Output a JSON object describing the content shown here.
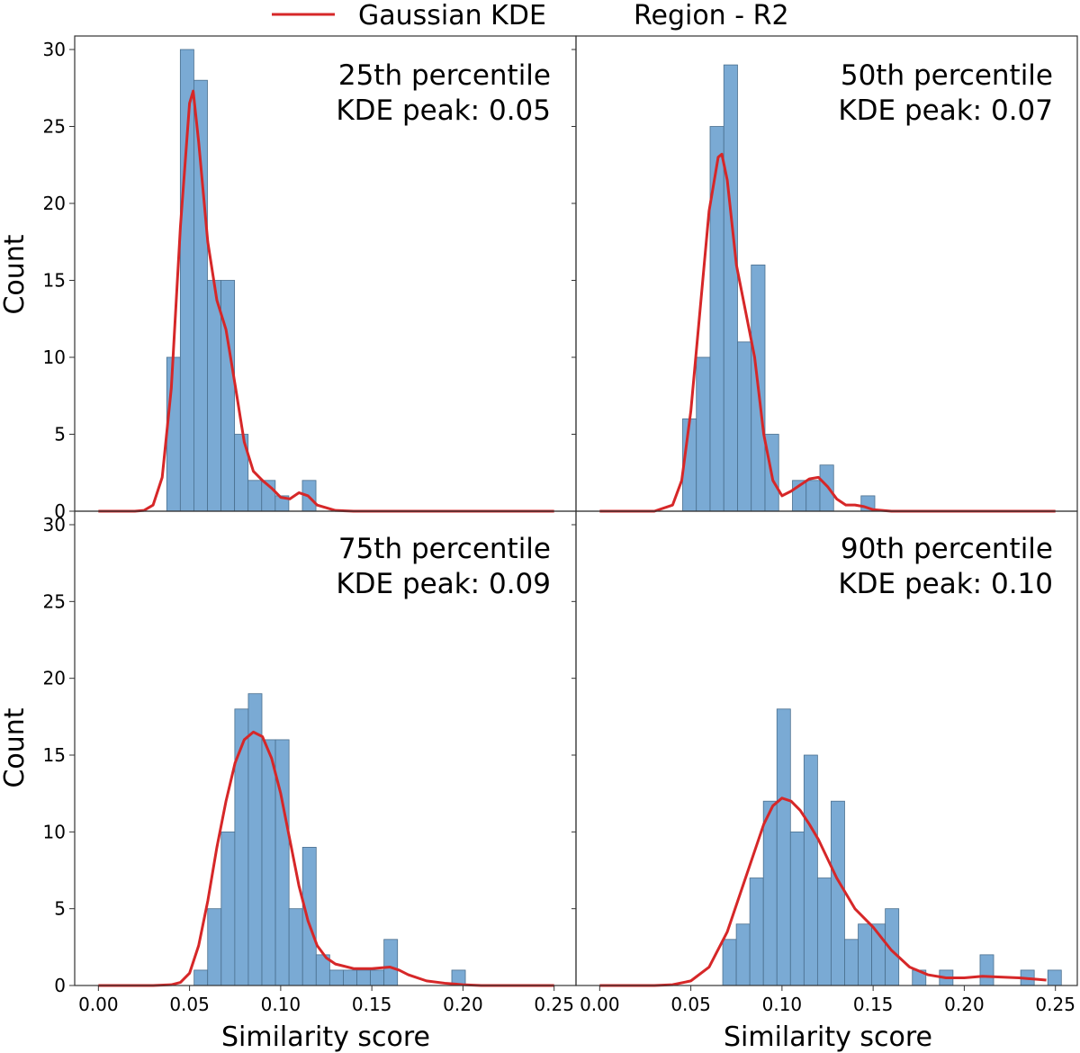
{
  "legend": {
    "kde_label": "Gaussian KDE",
    "region_label": "Region - R2"
  },
  "colors": {
    "bar_fill": "#7aaad4",
    "bar_edge": "#4a6f8e",
    "kde_line": "#d62728",
    "axis": "#333333"
  },
  "chart_data": [
    {
      "type": "bar",
      "panel": "top-left",
      "title_line1": "25th percentile",
      "title_line2": "KDE peak: 0.05",
      "xlabel": "",
      "ylabel": "Count",
      "xlim": [
        -0.013,
        0.262
      ],
      "ylim": [
        0,
        30
      ],
      "yticks": [
        0,
        5,
        10,
        15,
        20,
        25,
        30
      ],
      "ytick_labels": [
        "0",
        "5",
        "10",
        "15",
        "20",
        "25",
        "30"
      ],
      "bin_width": 0.00744,
      "bin_starts": [
        0.0375,
        0.04494,
        0.05238,
        0.05982,
        0.06726,
        0.0747,
        0.08214,
        0.08958,
        0.09702,
        0.10446,
        0.1119
      ],
      "values": [
        10,
        30,
        28,
        15,
        15,
        5,
        2,
        2,
        1,
        0,
        2
      ],
      "kde_x": [
        0.0,
        0.01,
        0.02,
        0.025,
        0.03,
        0.035,
        0.04,
        0.045,
        0.05,
        0.052,
        0.055,
        0.06,
        0.065,
        0.07,
        0.075,
        0.08,
        0.085,
        0.09,
        0.095,
        0.1,
        0.105,
        0.11,
        0.115,
        0.12,
        0.13,
        0.14,
        0.15,
        0.2,
        0.25
      ],
      "kde_y": [
        0.0,
        0.0,
        0.0,
        0.05,
        0.4,
        2.2,
        8.0,
        18.5,
        26.5,
        27.3,
        24.0,
        17.5,
        13.7,
        11.8,
        8.2,
        4.5,
        2.6,
        2.0,
        1.5,
        0.9,
        0.8,
        1.2,
        1.0,
        0.4,
        0.05,
        0.0,
        0.0,
        0.0,
        0.0
      ]
    },
    {
      "type": "bar",
      "panel": "top-right",
      "title_line1": "50th percentile",
      "title_line2": "KDE peak: 0.07",
      "xlabel": "",
      "ylabel": "",
      "xlim": [
        -0.013,
        0.262
      ],
      "ylim": [
        0,
        30
      ],
      "yticks": [
        0,
        5,
        10,
        15,
        20,
        25,
        30
      ],
      "ytick_labels": [],
      "bin_width": 0.00753,
      "bin_starts": [
        0.0455,
        0.05303,
        0.06056,
        0.06809,
        0.07562,
        0.08315,
        0.09068,
        0.09821,
        0.10574,
        0.11327,
        0.1208,
        0.12833,
        0.13586,
        0.14339
      ],
      "values": [
        6,
        10,
        25,
        29,
        11,
        16,
        5,
        0,
        2,
        2,
        3,
        0,
        0,
        1
      ],
      "kde_x": [
        0.0,
        0.01,
        0.02,
        0.03,
        0.04,
        0.045,
        0.05,
        0.055,
        0.06,
        0.065,
        0.067,
        0.07,
        0.075,
        0.08,
        0.085,
        0.09,
        0.095,
        0.1,
        0.105,
        0.11,
        0.115,
        0.12,
        0.125,
        0.13,
        0.135,
        0.14,
        0.145,
        0.15,
        0.16,
        0.2,
        0.25
      ],
      "kde_y": [
        0.0,
        0.0,
        0.0,
        0.0,
        0.4,
        2.0,
        6.5,
        13.0,
        19.5,
        23.0,
        23.2,
        21.5,
        16.0,
        13.0,
        10.0,
        5.0,
        2.0,
        1.0,
        1.3,
        1.7,
        2.1,
        2.2,
        1.6,
        0.8,
        0.4,
        0.4,
        0.3,
        0.1,
        0.0,
        0.0,
        0.0
      ]
    },
    {
      "type": "bar",
      "panel": "bottom-left",
      "title_line1": "75th percentile",
      "title_line2": "KDE peak: 0.09",
      "xlabel": "Similarity score",
      "ylabel": "Count",
      "xlim": [
        -0.013,
        0.262
      ],
      "ylim": [
        0,
        30
      ],
      "yticks": [
        0,
        5,
        10,
        15,
        20,
        25,
        30
      ],
      "ytick_labels": [
        "0",
        "5",
        "10",
        "15",
        "20",
        "25",
        "30"
      ],
      "xticks": [
        0.0,
        0.05,
        0.1,
        0.15,
        0.2,
        0.25
      ],
      "xtick_labels": [
        "0.00",
        "0.05",
        "0.10",
        "0.15",
        "0.20",
        "0.25"
      ],
      "bin_width": 0.00744,
      "bin_starts": [
        0.0525,
        0.05994,
        0.06738,
        0.07482,
        0.08226,
        0.0897,
        0.09714,
        0.10458,
        0.11202,
        0.11946,
        0.1269,
        0.13434,
        0.14178,
        0.14922,
        0.15666,
        0.1641,
        0.17154,
        0.17898,
        0.18642,
        0.19386
      ],
      "values": [
        1,
        5,
        10,
        18,
        19,
        16,
        16,
        5,
        9,
        2,
        1,
        1,
        1,
        1,
        3,
        0,
        0,
        0,
        0,
        1
      ],
      "kde_x": [
        0.0,
        0.02,
        0.03,
        0.04,
        0.045,
        0.05,
        0.055,
        0.06,
        0.065,
        0.07,
        0.075,
        0.08,
        0.085,
        0.09,
        0.095,
        0.1,
        0.105,
        0.11,
        0.115,
        0.12,
        0.125,
        0.13,
        0.14,
        0.15,
        0.16,
        0.165,
        0.17,
        0.18,
        0.19,
        0.2,
        0.21,
        0.25
      ],
      "kde_y": [
        0.0,
        0.0,
        0.0,
        0.05,
        0.2,
        0.8,
        2.6,
        5.5,
        9.0,
        12.0,
        14.5,
        16.0,
        16.5,
        16.2,
        14.8,
        12.5,
        9.5,
        6.5,
        4.2,
        2.6,
        1.8,
        1.4,
        1.1,
        1.1,
        1.2,
        1.0,
        0.7,
        0.3,
        0.15,
        0.05,
        0.0,
        0.0
      ]
    },
    {
      "type": "bar",
      "panel": "bottom-right",
      "title_line1": "90th percentile",
      "title_line2": "KDE peak: 0.10",
      "xlabel": "Similarity score",
      "ylabel": "",
      "xlim": [
        -0.013,
        0.262
      ],
      "ylim": [
        0,
        30
      ],
      "yticks": [
        0,
        5,
        10,
        15,
        20,
        25,
        30
      ],
      "ytick_labels": [],
      "xticks": [
        0.0,
        0.05,
        0.1,
        0.15,
        0.2,
        0.25
      ],
      "xtick_labels": [
        "0.00",
        "0.05",
        "0.10",
        "0.15",
        "0.20",
        "0.25"
      ],
      "bin_width": 0.00743,
      "bin_starts": [
        0.0675,
        0.07493,
        0.08236,
        0.08979,
        0.09722,
        0.10465,
        0.11208,
        0.11951,
        0.12694,
        0.13437,
        0.1418,
        0.14923,
        0.15666,
        0.16409,
        0.17152,
        0.17895,
        0.18638,
        0.19381,
        0.20124,
        0.20867,
        0.2161,
        0.22353,
        0.23096,
        0.23839,
        0.24582
      ],
      "values": [
        3,
        4,
        7,
        12,
        18,
        10,
        15,
        7,
        12,
        3,
        4,
        4,
        5,
        0,
        1,
        0,
        1,
        0,
        0,
        2,
        0,
        0,
        1,
        0,
        1
      ],
      "kde_x": [
        0.0,
        0.03,
        0.04,
        0.05,
        0.06,
        0.07,
        0.08,
        0.09,
        0.095,
        0.1,
        0.105,
        0.11,
        0.115,
        0.12,
        0.13,
        0.14,
        0.15,
        0.16,
        0.17,
        0.18,
        0.19,
        0.2,
        0.21,
        0.22,
        0.23,
        0.24,
        0.245
      ],
      "kde_y": [
        0.0,
        0.0,
        0.05,
        0.3,
        1.2,
        3.5,
        7.0,
        10.5,
        11.7,
        12.2,
        12.0,
        11.4,
        10.5,
        9.5,
        7.0,
        5.0,
        3.8,
        2.3,
        1.2,
        0.7,
        0.5,
        0.5,
        0.6,
        0.55,
        0.5,
        0.4,
        0.35
      ]
    }
  ]
}
